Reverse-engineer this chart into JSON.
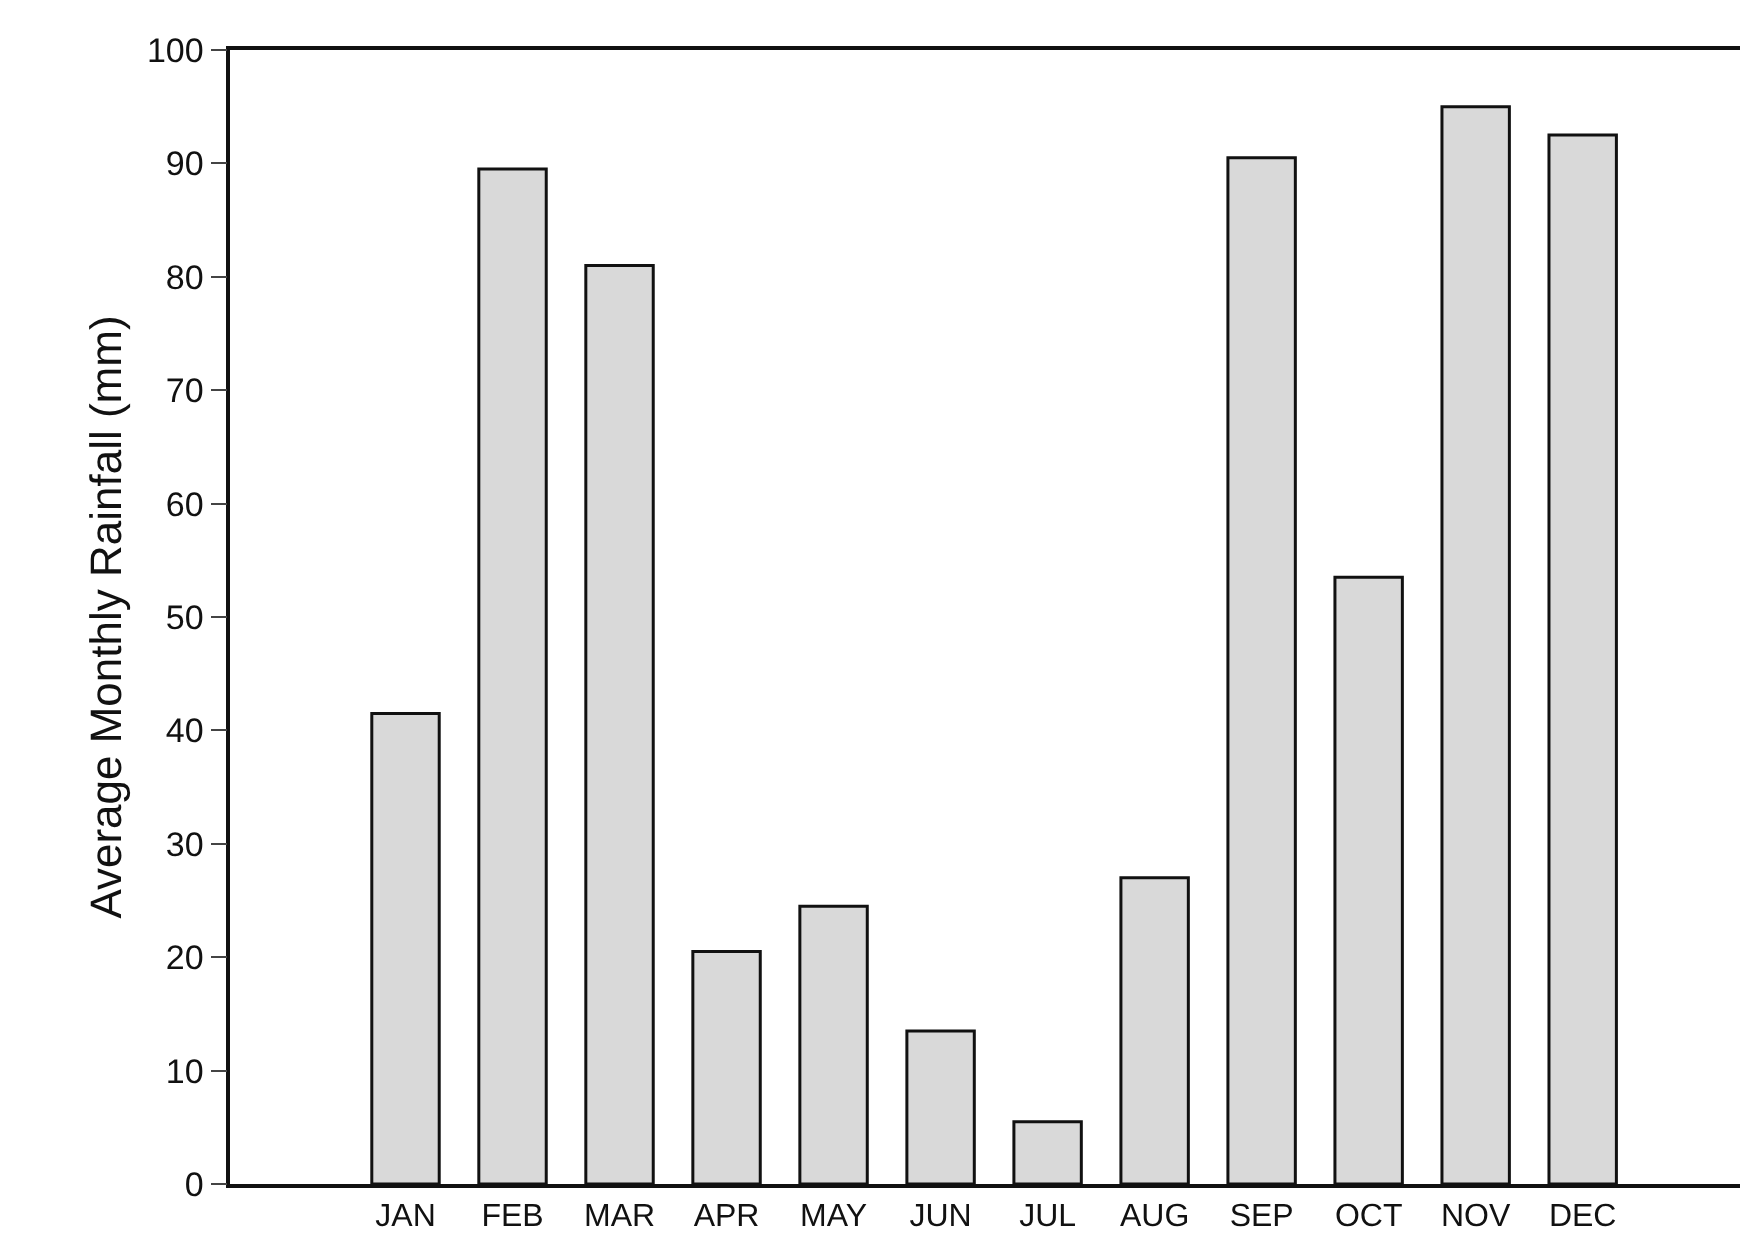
{
  "chart_data": {
    "type": "bar",
    "ylabel": "Average Monthly Rainfall (mm)",
    "categories": [
      "JAN",
      "FEB",
      "MAR",
      "APR",
      "MAY",
      "JUN",
      "JUL",
      "AUG",
      "SEP",
      "OCT",
      "NOV",
      "DEC"
    ],
    "values": [
      41.5,
      89.5,
      81,
      20.5,
      24.5,
      13.5,
      5.5,
      27,
      90.5,
      53.5,
      95,
      92.5
    ],
    "color": "#d9d9d9",
    "ylim": [
      0,
      100
    ],
    "yticks": [
      0,
      10,
      20,
      30,
      40,
      50,
      60,
      70,
      80,
      90,
      100
    ],
    "grid": false
  }
}
